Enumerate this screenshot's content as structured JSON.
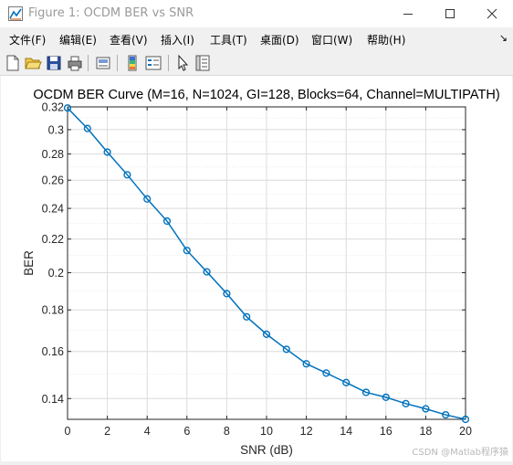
{
  "window": {
    "title": "Figure 1: OCDM BER vs SNR",
    "minimize_icon": "minimize-icon",
    "maximize_icon": "maximize-icon",
    "close_icon": "close-icon"
  },
  "menu": {
    "items": [
      "文件(F)",
      "编辑(E)",
      "查看(V)",
      "插入(I)",
      "工具(T)",
      "桌面(D)",
      "窗口(W)",
      "帮助(H)"
    ],
    "overflow_icon": "chevron-icon"
  },
  "toolbar": {
    "icons": [
      "new-figure-icon",
      "open-file-icon",
      "save-icon",
      "print-icon",
      "link-plot-icon",
      "colorbar-icon",
      "legend-icon",
      "pointer-icon",
      "property-editor-icon"
    ]
  },
  "watermark": "CSDN @Matlab程序猿",
  "chart_data": {
    "type": "line",
    "title": "OCDM BER Curve (M=16, N=1024, GI=128, Blocks=64, Channel=MULTIPATH)",
    "xlabel": "SNR (dB)",
    "ylabel": "BER",
    "x": [
      0,
      1,
      2,
      3,
      4,
      5,
      6,
      7,
      8,
      9,
      10,
      11,
      12,
      13,
      14,
      15,
      16,
      17,
      18,
      19,
      20
    ],
    "series": [
      {
        "values": [
          0.319,
          0.301,
          0.2815,
          0.264,
          0.2465,
          0.2315,
          0.213,
          0.2005,
          0.1885,
          0.1765,
          0.168,
          0.161,
          0.1545,
          0.1505,
          0.1465,
          0.1425,
          0.1405,
          0.138,
          0.136,
          0.1337,
          0.132
        ],
        "color": "#0072bd",
        "marker": "circle"
      }
    ],
    "xlim": [
      0,
      20
    ],
    "ylim": [
      0.132,
      0.32
    ],
    "y_scale": "log",
    "xticks": [
      0,
      2,
      4,
      6,
      8,
      10,
      12,
      14,
      16,
      18,
      20
    ],
    "yticks": [
      0.14,
      0.16,
      0.18,
      0.2,
      0.22,
      0.24,
      0.26,
      0.28,
      0.3,
      0.32
    ],
    "ytick_labels": [
      "0.14",
      "0.16",
      "0.18",
      "0.2",
      "0.22",
      "0.24",
      "0.26",
      "0.28",
      "0.3",
      "0.32"
    ],
    "grid": true,
    "minor_grid": true
  }
}
